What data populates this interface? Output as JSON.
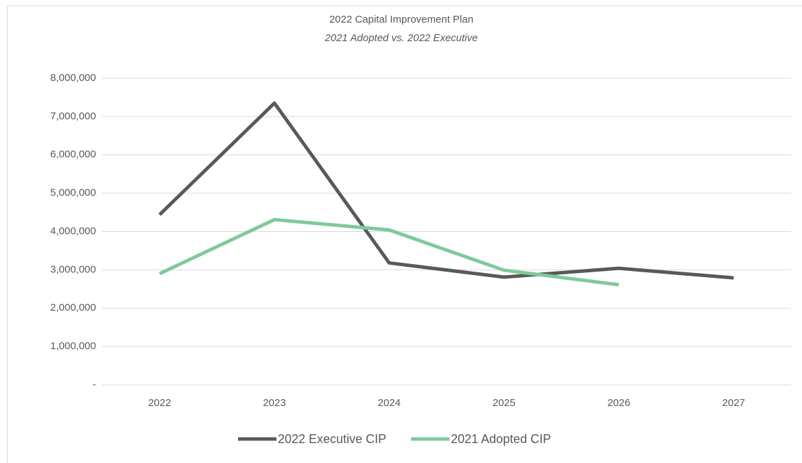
{
  "chart_data": {
    "type": "line",
    "title": "2022 Capital Improvement Plan",
    "subtitle": "2021 Adopted vs. 2022 Executive",
    "categories": [
      "2022",
      "2023",
      "2024",
      "2025",
      "2026",
      "2027"
    ],
    "series": [
      {
        "name": "2022 Executive CIP",
        "color": "#595959",
        "values": [
          4440000,
          7350000,
          3180000,
          2810000,
          3040000,
          2790000
        ]
      },
      {
        "name": "2021 Adopted CIP",
        "color": "#7fc99a",
        "values": [
          2900000,
          4310000,
          4040000,
          2990000,
          2610000,
          null
        ]
      }
    ],
    "ylim": [
      0,
      8000000
    ],
    "yticks": [
      {
        "value": 0,
        "label": "-"
      },
      {
        "value": 1000000,
        "label": "1,000,000"
      },
      {
        "value": 2000000,
        "label": "2,000,000"
      },
      {
        "value": 3000000,
        "label": "3,000,000"
      },
      {
        "value": 4000000,
        "label": "4,000,000"
      },
      {
        "value": 5000000,
        "label": "5,000,000"
      },
      {
        "value": 6000000,
        "label": "6,000,000"
      },
      {
        "value": 7000000,
        "label": "7,000,000"
      },
      {
        "value": 8000000,
        "label": "8,000,000"
      }
    ],
    "grid": true,
    "legend": "bottom"
  }
}
